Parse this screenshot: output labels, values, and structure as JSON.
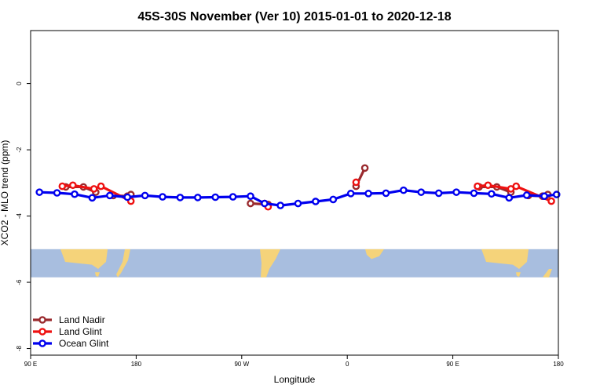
{
  "chart_data": {
    "type": "line",
    "title": "45S-30S November (Ver 10)   2015-01-01 to 2020-12-18",
    "xlabel": "Longitude",
    "ylabel": "XCO2 - MLO trend (ppm)",
    "xlim": [
      90,
      390
    ],
    "ylim": [
      -8.2,
      1.6
    ],
    "x_ticks": [
      {
        "value": 90,
        "label": "90 E"
      },
      {
        "value": 150,
        "label": "180"
      },
      {
        "value": 210,
        "label": "90 W"
      },
      {
        "value": 270,
        "label": "0"
      },
      {
        "value": 330,
        "label": "90 E"
      },
      {
        "value": 390,
        "label": "180"
      }
    ],
    "y_ticks": [
      {
        "value": 0,
        "label": "0"
      },
      {
        "value": -2,
        "label": "-2"
      },
      {
        "value": -4,
        "label": "-4"
      },
      {
        "value": -6,
        "label": "-6"
      },
      {
        "value": -8,
        "label": "-8"
      }
    ],
    "map_band": {
      "y_range": [
        -5.0,
        -5.85
      ],
      "ocean_color": "#a8bedf",
      "land_color": "#f5d37a"
    },
    "legend_position": "bottom-left",
    "grid": false,
    "series": [
      {
        "name": "Land Nadir",
        "color": "#9a2a2e",
        "segments": [
          [
            [
              110,
              -3.12
            ],
            [
              120,
              -3.12
            ],
            [
              127,
              -3.28
            ]
          ],
          [
            [
              137,
              -3.38
            ],
            [
              145,
              -3.4
            ],
            [
              147,
              -3.35
            ]
          ],
          [
            [
              215,
              -3.62
            ],
            [
              225,
              -3.65
            ]
          ],
          [
            [
              275,
              -3.1
            ],
            [
              280,
              -2.55
            ]
          ],
          [
            [
              345,
              -3.12
            ],
            [
              355,
              -3.12
            ],
            [
              363,
              -3.28
            ]
          ],
          [
            [
              373,
              -3.38
            ],
            [
              381,
              -3.4
            ],
            [
              384,
              -3.35
            ]
          ]
        ]
      },
      {
        "name": "Land Glint",
        "color": "#ee1111",
        "segments": [
          [
            [
              108,
              -3.1
            ],
            [
              114,
              -3.07
            ],
            [
              126,
              -3.18
            ],
            [
              130,
              -3.1
            ],
            [
              147,
              -3.55
            ]
          ],
          [
            [
              223,
              -3.62
            ],
            [
              225,
              -3.72
            ]
          ],
          [
            [
              275,
              -2.98
            ]
          ],
          [
            [
              344,
              -3.1
            ],
            [
              350,
              -3.07
            ],
            [
              363,
              -3.18
            ],
            [
              366,
              -3.1
            ],
            [
              386,
              -3.55
            ]
          ]
        ]
      },
      {
        "name": "Ocean Glint",
        "color": "#0000ee",
        "segments": [
          [
            [
              95,
              -3.28
            ],
            [
              105,
              -3.3
            ],
            [
              115,
              -3.34
            ],
            [
              125,
              -3.45
            ],
            [
              135,
              -3.38
            ],
            [
              145,
              -3.43
            ],
            [
              155,
              -3.38
            ],
            [
              165,
              -3.42
            ],
            [
              175,
              -3.44
            ],
            [
              185,
              -3.44
            ],
            [
              195,
              -3.43
            ],
            [
              205,
              -3.42
            ],
            [
              215,
              -3.4
            ],
            [
              223,
              -3.62
            ],
            [
              232,
              -3.68
            ],
            [
              242,
              -3.62
            ],
            [
              252,
              -3.56
            ],
            [
              262,
              -3.5
            ],
            [
              272,
              -3.32
            ],
            [
              282,
              -3.32
            ],
            [
              292,
              -3.31
            ],
            [
              302,
              -3.22
            ],
            [
              312,
              -3.28
            ],
            [
              322,
              -3.31
            ],
            [
              332,
              -3.28
            ],
            [
              342,
              -3.31
            ],
            [
              352,
              -3.33
            ],
            [
              362,
              -3.45
            ],
            [
              372,
              -3.37
            ],
            [
              382,
              -3.4
            ],
            [
              389,
              -3.35
            ]
          ]
        ]
      }
    ]
  }
}
